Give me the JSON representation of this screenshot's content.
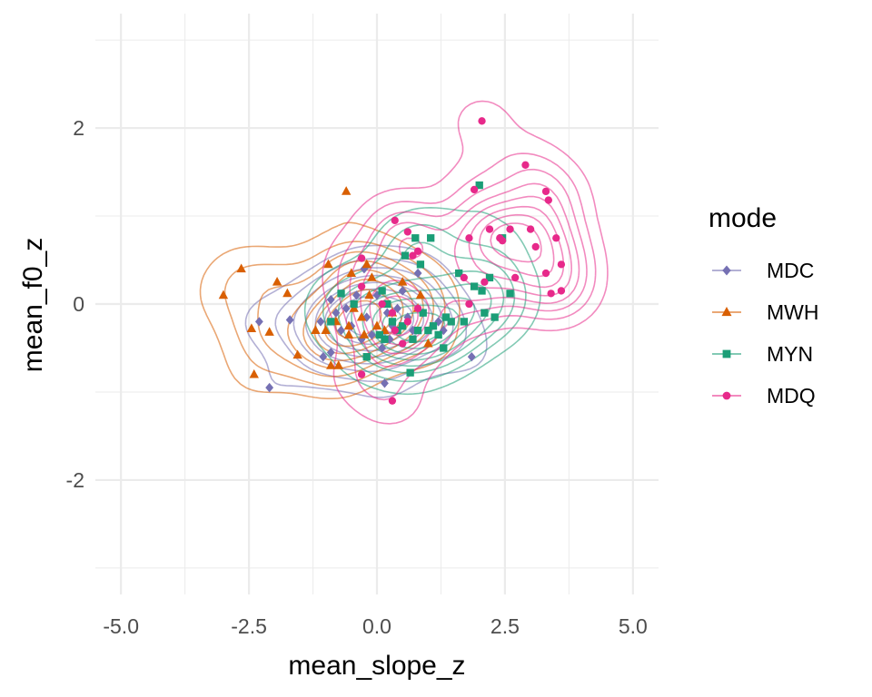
{
  "chart_data": {
    "type": "scatter",
    "xlabel": "mean_slope_z",
    "ylabel": "mean_f0_z",
    "xlim": [
      -5.5,
      5.5
    ],
    "ylim": [
      -3.3,
      3.3
    ],
    "x_ticks": [
      -5.0,
      -2.5,
      0.0,
      2.5,
      5.0
    ],
    "x_tick_labels": [
      "-5.0",
      "-2.5",
      "0.0",
      "2.5",
      "5.0"
    ],
    "y_ticks": [
      -2,
      0,
      2
    ],
    "y_tick_labels": [
      "-2",
      "0",
      "2"
    ],
    "grid": true,
    "density_contours": true,
    "legend": {
      "title": "mode",
      "position": "right"
    },
    "series": [
      {
        "name": "MDC",
        "color": "#7570b3",
        "shape": "diamond",
        "points": [
          [
            -2.3,
            -0.2
          ],
          [
            -2.1,
            -0.95
          ],
          [
            -1.7,
            -0.18
          ],
          [
            -1.1,
            -0.2
          ],
          [
            -1.05,
            -0.6
          ],
          [
            -0.9,
            0.05
          ],
          [
            -0.9,
            -0.55
          ],
          [
            -0.8,
            -0.1
          ],
          [
            -0.7,
            -0.3
          ],
          [
            -0.6,
            -0.05
          ],
          [
            -0.5,
            -0.25
          ],
          [
            -0.4,
            0.1
          ],
          [
            -0.3,
            -0.4
          ],
          [
            -0.25,
            0.4
          ],
          [
            -0.2,
            -0.15
          ],
          [
            -0.1,
            -0.35
          ],
          [
            0.0,
            0.1
          ],
          [
            0.1,
            -0.5
          ],
          [
            0.15,
            -0.9
          ],
          [
            0.2,
            -0.1
          ],
          [
            0.25,
            -0.4
          ],
          [
            0.3,
            -0.25
          ],
          [
            0.4,
            -0.05
          ],
          [
            0.5,
            0.15
          ],
          [
            0.6,
            -0.15
          ],
          [
            0.7,
            -0.3
          ],
          [
            0.8,
            0.35
          ],
          [
            0.9,
            -0.1
          ],
          [
            1.2,
            -0.2
          ],
          [
            1.3,
            -0.3
          ],
          [
            1.85,
            -0.6
          ]
        ]
      },
      {
        "name": "MWH",
        "color": "#d95f02",
        "shape": "triangle",
        "points": [
          [
            -3.0,
            0.1
          ],
          [
            -2.65,
            0.4
          ],
          [
            -2.45,
            -0.28
          ],
          [
            -2.4,
            -0.8
          ],
          [
            -2.1,
            -0.32
          ],
          [
            -1.95,
            0.25
          ],
          [
            -1.75,
            0.12
          ],
          [
            -1.55,
            -0.58
          ],
          [
            -1.2,
            -0.3
          ],
          [
            -1.0,
            -0.3
          ],
          [
            -0.95,
            0.45
          ],
          [
            -0.9,
            -0.7
          ],
          [
            -0.8,
            -0.2
          ],
          [
            -0.75,
            -0.7
          ],
          [
            -0.6,
            1.28
          ],
          [
            -0.55,
            -0.35
          ],
          [
            -0.5,
            0.35
          ],
          [
            -0.45,
            -0.05
          ],
          [
            -0.3,
            -0.15
          ],
          [
            -0.25,
            -0.35
          ],
          [
            -0.2,
            0.45
          ],
          [
            -0.15,
            0.1
          ],
          [
            -0.1,
            0.3
          ],
          [
            0.0,
            -0.25
          ],
          [
            0.15,
            -0.3
          ],
          [
            0.3,
            -0.1
          ],
          [
            0.5,
            0.25
          ],
          [
            0.8,
            -0.05
          ],
          [
            0.85,
            0.1
          ],
          [
            1.0,
            -0.45
          ],
          [
            -0.55,
            -0.25
          ]
        ]
      },
      {
        "name": "MYN",
        "color": "#1b9e77",
        "shape": "square",
        "points": [
          [
            -0.9,
            -0.2
          ],
          [
            -0.7,
            0.12
          ],
          [
            -0.45,
            0.0
          ],
          [
            -0.2,
            -0.6
          ],
          [
            0.05,
            -0.35
          ],
          [
            0.1,
            0.15
          ],
          [
            0.2,
            0.0
          ],
          [
            0.3,
            -0.2
          ],
          [
            0.4,
            -0.3
          ],
          [
            0.5,
            -0.25
          ],
          [
            0.55,
            0.55
          ],
          [
            0.65,
            -0.78
          ],
          [
            0.7,
            -0.4
          ],
          [
            0.75,
            0.75
          ],
          [
            0.8,
            -0.3
          ],
          [
            0.85,
            0.45
          ],
          [
            0.9,
            -0.1
          ],
          [
            1.0,
            -0.3
          ],
          [
            1.05,
            0.75
          ],
          [
            1.1,
            -0.25
          ],
          [
            1.2,
            -0.35
          ],
          [
            1.3,
            -0.5
          ],
          [
            1.35,
            -0.15
          ],
          [
            1.45,
            -0.2
          ],
          [
            1.6,
            0.35
          ],
          [
            1.7,
            -0.2
          ],
          [
            1.9,
            0.2
          ],
          [
            2.0,
            1.35
          ],
          [
            2.05,
            0.15
          ],
          [
            2.2,
            0.3
          ],
          [
            2.3,
            -0.15
          ],
          [
            2.45,
            0.75
          ],
          [
            2.6,
            0.12
          ],
          [
            2.1,
            -0.1
          ],
          [
            0.15,
            -0.4
          ]
        ]
      },
      {
        "name": "MDQ",
        "color": "#e7298a",
        "shape": "circle",
        "points": [
          [
            2.05,
            2.08
          ],
          [
            2.9,
            1.58
          ],
          [
            1.9,
            1.3
          ],
          [
            3.3,
            1.28
          ],
          [
            3.35,
            1.18
          ],
          [
            0.35,
            0.95
          ],
          [
            2.2,
            0.85
          ],
          [
            2.6,
            0.85
          ],
          [
            3.0,
            0.85
          ],
          [
            3.5,
            0.75
          ],
          [
            2.4,
            0.75
          ],
          [
            1.8,
            0.75
          ],
          [
            3.1,
            0.65
          ],
          [
            2.45,
            0.72
          ],
          [
            0.6,
            0.82
          ],
          [
            0.8,
            0.6
          ],
          [
            0.7,
            0.55
          ],
          [
            -0.3,
            0.52
          ],
          [
            3.6,
            0.45
          ],
          [
            3.3,
            0.35
          ],
          [
            2.7,
            0.3
          ],
          [
            2.1,
            0.25
          ],
          [
            1.7,
            0.3
          ],
          [
            3.4,
            0.12
          ],
          [
            3.6,
            0.15
          ],
          [
            1.8,
            0.0
          ],
          [
            0.8,
            -0.05
          ],
          [
            0.6,
            -0.2
          ],
          [
            0.3,
            -0.1
          ],
          [
            0.1,
            0.0
          ],
          [
            -0.3,
            0.2
          ],
          [
            0.35,
            -0.3
          ],
          [
            0.5,
            -0.45
          ],
          [
            -0.3,
            -0.8
          ],
          [
            0.3,
            -1.1
          ]
        ]
      }
    ]
  }
}
